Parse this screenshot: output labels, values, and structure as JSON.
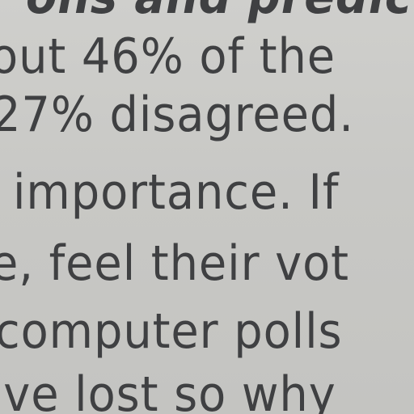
{
  "text": {
    "lines": [
      "ons and predict",
      "out 46% of the",
      "27% disagreed.",
      "importance. If",
      "e, feel their vot",
      "computer  polls",
      "'ve lost so why"
    ]
  }
}
